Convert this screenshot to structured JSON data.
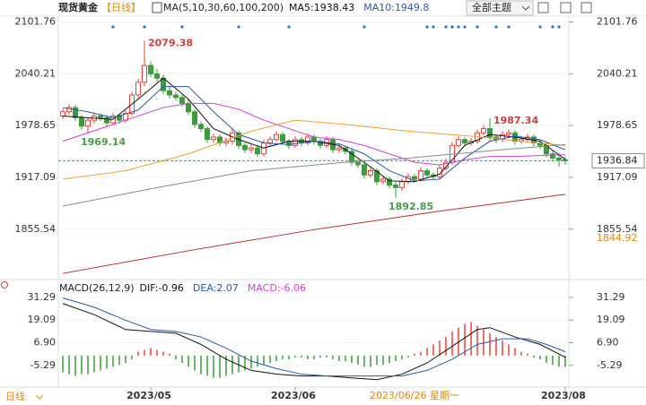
{
  "toolbar": {
    "symbol": "现货黄金",
    "period": "【日线】",
    "theme_button": "全部主题"
  },
  "period_selector": "日线",
  "chart_data": [
    {
      "type": "candlestick",
      "indicator": "MA(5,10,30,60,100,200)",
      "up_color": "#e8443a",
      "down_color": "#3c9b3c",
      "ylim": [
        1800,
        2115
      ],
      "yticks": [
        2101.76,
        2040.21,
        1978.65,
        1917.09,
        1855.54
      ],
      "candles": [
        [
          1990,
          1999,
          1986,
          1995
        ],
        [
          1995,
          2004,
          1992,
          2000
        ],
        [
          2000,
          2003,
          1984,
          1988
        ],
        [
          1988,
          1991,
          1974,
          1978
        ],
        [
          1978,
          1988,
          1969.14,
          1985
        ],
        [
          1985,
          1994,
          1981,
          1990
        ],
        [
          1990,
          1993,
          1984,
          1988
        ],
        [
          1988,
          1991,
          1978,
          1982
        ],
        [
          1982,
          1994,
          1979,
          1990
        ],
        [
          1990,
          1993,
          1981,
          1985
        ],
        [
          1985,
          1997,
          1982,
          1993
        ],
        [
          1993,
          2019,
          1990,
          2015
        ],
        [
          2015,
          2034,
          2011,
          2030
        ],
        [
          2030,
          2079.38,
          2025,
          2050
        ],
        [
          2050,
          2055,
          2036,
          2040
        ],
        [
          2040,
          2046,
          2030,
          2035
        ],
        [
          2035,
          2039,
          2016,
          2020
        ],
        [
          2020,
          2026,
          2011,
          2015
        ],
        [
          2015,
          2019,
          2008,
          2012
        ],
        [
          2012,
          2015,
          2001,
          2005
        ],
        [
          2005,
          2009,
          1991,
          1995
        ],
        [
          1995,
          1998,
          1976,
          1980
        ],
        [
          1980,
          1984,
          1971,
          1975
        ],
        [
          1975,
          1978,
          1958,
          1962
        ],
        [
          1962,
          1969,
          1958,
          1965
        ],
        [
          1965,
          1968,
          1954,
          1958
        ],
        [
          1958,
          1964,
          1954,
          1960
        ],
        [
          1960,
          1974,
          1956,
          1970
        ],
        [
          1970,
          1973,
          1951,
          1955
        ],
        [
          1955,
          1958,
          1946,
          1950
        ],
        [
          1950,
          1956,
          1946,
          1952
        ],
        [
          1952,
          1955,
          1941,
          1945
        ],
        [
          1945,
          1962,
          1942,
          1958
        ],
        [
          1958,
          1966,
          1955,
          1962
        ],
        [
          1962,
          1972,
          1959,
          1968
        ],
        [
          1968,
          1971,
          1956,
          1960
        ],
        [
          1960,
          1963,
          1951,
          1955
        ],
        [
          1955,
          1966,
          1952,
          1962
        ],
        [
          1962,
          1965,
          1954,
          1958
        ],
        [
          1958,
          1969,
          1955,
          1965
        ],
        [
          1965,
          1968,
          1956,
          1960
        ],
        [
          1960,
          1963,
          1951,
          1955
        ],
        [
          1955,
          1966,
          1952,
          1962
        ],
        [
          1962,
          1965,
          1946,
          1950
        ],
        [
          1950,
          1956,
          1946,
          1952
        ],
        [
          1952,
          1955,
          1944,
          1948
        ],
        [
          1948,
          1951,
          1931,
          1935
        ],
        [
          1935,
          1939,
          1928,
          1932
        ],
        [
          1932,
          1935,
          1916,
          1920
        ],
        [
          1920,
          1929,
          1917,
          1925
        ],
        [
          1925,
          1928,
          1908,
          1912
        ],
        [
          1912,
          1919,
          1909,
          1915
        ],
        [
          1915,
          1918,
          1904,
          1908
        ],
        [
          1908,
          1912,
          1892.85,
          1905
        ],
        [
          1905,
          1916,
          1901,
          1912
        ],
        [
          1912,
          1922,
          1909,
          1918
        ],
        [
          1918,
          1921,
          1911,
          1915
        ],
        [
          1915,
          1929,
          1912,
          1925
        ],
        [
          1925,
          1928,
          1916,
          1920
        ],
        [
          1920,
          1923,
          1914,
          1918
        ],
        [
          1918,
          1932,
          1915,
          1928
        ],
        [
          1928,
          1939,
          1925,
          1935
        ],
        [
          1935,
          1959,
          1932,
          1955
        ],
        [
          1955,
          1966,
          1952,
          1962
        ],
        [
          1962,
          1965,
          1954,
          1958
        ],
        [
          1958,
          1964,
          1955,
          1960
        ],
        [
          1960,
          1974,
          1957,
          1970
        ],
        [
          1970,
          1979,
          1967,
          1975
        ],
        [
          1975,
          1987.34,
          1960,
          1965
        ],
        [
          1965,
          1968,
          1958,
          1962
        ],
        [
          1962,
          1972,
          1959,
          1968
        ],
        [
          1968,
          1974,
          1965,
          1970
        ],
        [
          1970,
          1973,
          1956,
          1960
        ],
        [
          1960,
          1966,
          1957,
          1962
        ],
        [
          1962,
          1969,
          1959,
          1965
        ],
        [
          1965,
          1968,
          1954,
          1958
        ],
        [
          1958,
          1961,
          1951,
          1955
        ],
        [
          1955,
          1958,
          1941,
          1945
        ],
        [
          1945,
          1948,
          1936,
          1940
        ],
        [
          1940,
          1946,
          1930,
          1938
        ],
        [
          1938,
          1942,
          1932,
          1936.84
        ]
      ],
      "series": [
        {
          "name": "MA5:1938.43",
          "color": "#111111",
          "x": [
            0,
            4,
            8,
            12,
            16,
            20,
            24,
            28,
            32,
            36,
            40,
            44,
            48,
            52,
            56,
            60,
            64,
            68,
            72,
            76,
            80
          ],
          "values": [
            1990,
            1988,
            1986,
            2010,
            2035,
            2010,
            1975,
            1962,
            1952,
            1960,
            1960,
            1955,
            1935,
            1913,
            1912,
            1921,
            1955,
            1968,
            1965,
            1960,
            1938.43
          ]
        },
        {
          "name": "MA10:1949.8",
          "color": "#2b57a8",
          "x": [
            0,
            4,
            8,
            12,
            16,
            20,
            24,
            28,
            32,
            36,
            40,
            44,
            48,
            52,
            56,
            60,
            64,
            68,
            72,
            76,
            80
          ],
          "values": [
            2000,
            1995,
            1988,
            1997,
            2025,
            2025,
            1995,
            1968,
            1958,
            1956,
            1960,
            1957,
            1945,
            1925,
            1913,
            1915,
            1940,
            1960,
            1966,
            1962,
            1949.8
          ]
        },
        {
          "color": "#d33fd3",
          "x": [
            0,
            4,
            8,
            12,
            16,
            20,
            24,
            28,
            32,
            36,
            40,
            44,
            48,
            52,
            56,
            60,
            64,
            68,
            72,
            76,
            80
          ],
          "values": [
            1960,
            1970,
            1980,
            1990,
            2000,
            2005,
            2005,
            1998,
            1985,
            1975,
            1965,
            1962,
            1955,
            1945,
            1935,
            1932,
            1938,
            1942,
            1942,
            1943,
            1944
          ]
        },
        {
          "color": "#f0a030",
          "x": [
            0,
            10,
            20,
            30,
            37,
            45,
            55,
            65,
            80
          ],
          "values": [
            1915,
            1925,
            1945,
            1972,
            1985,
            1980,
            1972,
            1966,
            1955
          ]
        },
        {
          "color": "#8a8a8a",
          "x": [
            0,
            15,
            30,
            45,
            55,
            70,
            80
          ],
          "values": [
            1883,
            1905,
            1925,
            1935,
            1940,
            1950,
            1956
          ]
        },
        {
          "color": "#b03030",
          "x": [
            0,
            20,
            40,
            60,
            80
          ],
          "values": [
            1803,
            1830,
            1855,
            1877,
            1897
          ]
        }
      ],
      "marked_extremes": [
        {
          "candle": 13,
          "at": "high"
        },
        {
          "candle": 4,
          "at": "low"
        },
        {
          "candle": 53,
          "at": "low"
        },
        {
          "candle": 68,
          "at": "high"
        }
      ],
      "event_candles": [
        8,
        13,
        19,
        28,
        36,
        48,
        58,
        59,
        61,
        62,
        63,
        64,
        66,
        69,
        71,
        76,
        78,
        79
      ],
      "right_markers": [
        {
          "value": 1936.84,
          "style": "boxed",
          "color": "#1aa0c8"
        },
        {
          "value": 1844.92,
          "style": "plain",
          "color": "#e08a10"
        }
      ]
    },
    {
      "type": "macd",
      "indicator": "MACD(26,12,9)",
      "up_color": "#e8443a",
      "down_color": "#3c9b3c",
      "ylim": [
        -16,
        38
      ],
      "yticks": [
        31.29,
        19.09,
        {
          "value": 6.9,
          "label": "6.90"
        },
        -5.29
      ],
      "histogram": [
        -9,
        -10,
        -11,
        -10,
        -10,
        -9,
        -8,
        -7,
        -6,
        -5,
        -4,
        -2,
        2,
        3,
        4,
        3,
        2,
        1,
        -2,
        -4,
        -6,
        -8,
        -10,
        -11,
        -12,
        -12,
        -11,
        -10,
        -9,
        -8,
        -7,
        -6,
        -5,
        -4,
        -3,
        -2,
        -2,
        -1,
        -1,
        -2,
        -2,
        -1,
        -1,
        -2,
        -3,
        -3,
        -4,
        -5,
        -6,
        -6,
        -5,
        -5,
        -4,
        -3,
        -2,
        -1,
        1,
        2,
        4,
        6,
        8,
        10,
        13,
        15,
        17,
        18,
        16,
        14,
        12,
        10,
        8,
        6,
        4,
        2,
        1,
        -1,
        -2,
        -4,
        -5,
        -6,
        -6.06
      ],
      "series": [
        {
          "name": "DIF:-0.96",
          "color": "#111111",
          "x": [
            0,
            5,
            10,
            14,
            18,
            22,
            26,
            30,
            34,
            38,
            42,
            46,
            50,
            54,
            58,
            62,
            66,
            68,
            72,
            76,
            80
          ],
          "values": [
            28,
            22,
            14,
            13,
            12,
            6,
            -2,
            -8,
            -10,
            -11,
            -11,
            -12,
            -13,
            -10,
            -4,
            5,
            14,
            15,
            10,
            6,
            -0.96
          ]
        },
        {
          "name": "DEA:2.07",
          "color": "#2b57a8",
          "x": [
            0,
            5,
            10,
            14,
            18,
            22,
            26,
            30,
            34,
            38,
            42,
            46,
            50,
            54,
            58,
            62,
            66,
            70,
            74,
            77,
            80
          ],
          "values": [
            31,
            26,
            19,
            14,
            13,
            10,
            4,
            -3,
            -7,
            -10,
            -11,
            -11,
            -11,
            -11,
            -8,
            -2,
            6,
            9,
            9,
            6,
            2.07
          ]
        }
      ],
      "histogram_name": "MACD:-6.06",
      "histogram_name_color": "#d33fd3",
      "x_labels": [
        {
          "candle": 14,
          "label": "2023/05"
        },
        {
          "candle": 37,
          "label": "2023/06"
        },
        {
          "candle": 80,
          "label": "2023/08"
        }
      ],
      "cursor_label": {
        "candle": 56,
        "label": "2023/06/26 星期一"
      }
    }
  ]
}
